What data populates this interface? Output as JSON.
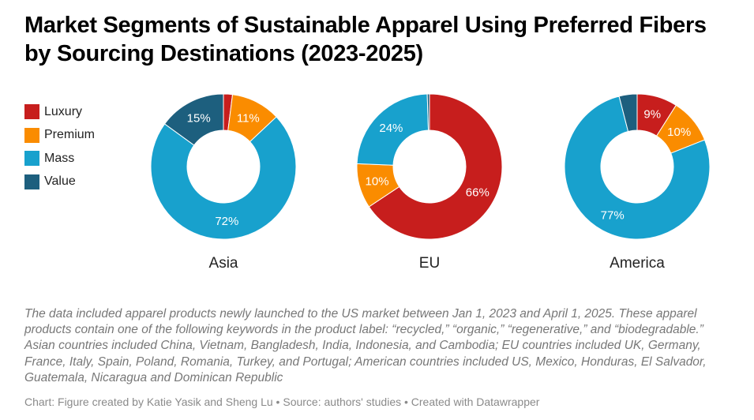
{
  "title": "Market Segments of Sustainable Apparel Using Preferred Fibers by Sourcing Destinations (2023-2025)",
  "legend": [
    {
      "label": "Luxury",
      "color": "#c71e1d"
    },
    {
      "label": "Premium",
      "color": "#fa8c00"
    },
    {
      "label": "Mass",
      "color": "#18a1cd"
    },
    {
      "label": "Value",
      "color": "#1d5f7e"
    }
  ],
  "chart_data": [
    {
      "type": "pie",
      "subtype": "donut",
      "title": "Asia",
      "categories": [
        "Luxury",
        "Premium",
        "Mass",
        "Value"
      ],
      "values": [
        2,
        11,
        72,
        15
      ],
      "labels": [
        "",
        "11%",
        "72%",
        "15%"
      ],
      "colors": [
        "#c71e1d",
        "#fa8c00",
        "#18a1cd",
        "#1d5f7e"
      ]
    },
    {
      "type": "pie",
      "subtype": "donut",
      "title": "EU",
      "categories": [
        "Luxury",
        "Premium",
        "Mass",
        "Value"
      ],
      "values": [
        66,
        10,
        24,
        0.5
      ],
      "labels": [
        "66%",
        "10%",
        "24%",
        ""
      ],
      "colors": [
        "#c71e1d",
        "#fa8c00",
        "#18a1cd",
        "#1d5f7e"
      ]
    },
    {
      "type": "pie",
      "subtype": "donut",
      "title": "America",
      "categories": [
        "Luxury",
        "Premium",
        "Mass",
        "Value"
      ],
      "values": [
        9,
        10,
        77,
        4
      ],
      "labels": [
        "9%",
        "10%",
        "77%",
        ""
      ],
      "colors": [
        "#c71e1d",
        "#fa8c00",
        "#18a1cd",
        "#1d5f7e"
      ]
    }
  ],
  "note": "The data included apparel products newly launched to the US market between Jan 1, 2023 and April 1, 2025. These apparel products contain one of the following keywords in the product label: “recycled,” “organic,” “regenerative,” and “biodegradable.” Asian countries included China, Vietnam, Bangladesh, India, Indonesia, and Cambodia; EU countries included UK, Germany, France, Italy, Spain, Poland, Romania, Turkey, and Portugal; American countries included US, Mexico, Honduras, El Salvador, Guatemala, Nicaragua and Dominican Republic",
  "footer": "Chart: Figure created by Katie Yasik and Sheng Lu • Source: authors' studies • Created with Datawrapper"
}
